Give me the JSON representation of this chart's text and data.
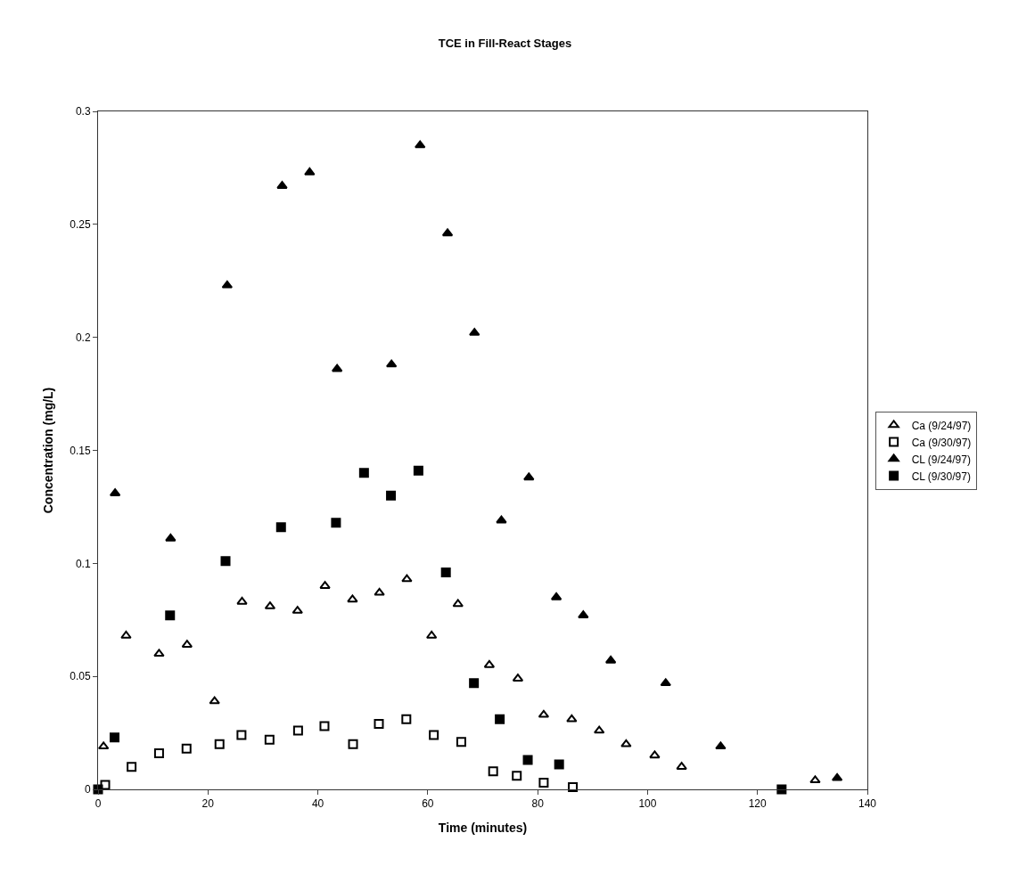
{
  "chart_data": {
    "type": "scatter",
    "title": "TCE in Fill-React Stages",
    "xlabel": "Time (minutes)",
    "ylabel": "Concentration (mg/L)",
    "xlim": [
      0,
      140
    ],
    "xticks": [
      0,
      20,
      40,
      60,
      80,
      100,
      120,
      140
    ],
    "ylim": [
      0,
      0.3
    ],
    "yticks": [
      0,
      0.05,
      0.1,
      0.15,
      0.2,
      0.25,
      0.3
    ],
    "legend": "right",
    "series": [
      {
        "name": "Ca (9/24/97)",
        "color": "#000000",
        "marker": "triangle-open",
        "x": [
          1.0,
          5.1,
          11.1,
          16.2,
          21.2,
          26.2,
          31.3,
          36.3,
          41.3,
          46.3,
          51.2,
          56.2,
          60.7,
          65.5,
          71.2,
          76.4,
          81.1,
          86.2,
          91.2,
          96.1,
          101.3,
          106.2,
          130.5
        ],
        "values": [
          0.019,
          0.068,
          0.06,
          0.064,
          0.039,
          0.083,
          0.081,
          0.079,
          0.09,
          0.084,
          0.087,
          0.093,
          0.068,
          0.082,
          0.055,
          0.049,
          0.033,
          0.031,
          0.026,
          0.02,
          0.015,
          0.01,
          0.004
        ]
      },
      {
        "name": "Ca (9/30/97)",
        "color": "#000000",
        "marker": "square-open",
        "x": [
          1.3,
          6.1,
          11.1,
          16.1,
          22.1,
          26.1,
          31.2,
          36.4,
          41.2,
          46.4,
          51.1,
          56.1,
          61.1,
          66.1,
          71.9,
          76.2,
          81.1,
          86.4
        ],
        "values": [
          0.002,
          0.01,
          0.016,
          0.018,
          0.02,
          0.024,
          0.022,
          0.026,
          0.028,
          0.02,
          0.029,
          0.031,
          0.024,
          0.021,
          0.008,
          0.006,
          0.003,
          0.001
        ]
      },
      {
        "name": "CL (9/24/97)",
        "color": "#000000",
        "marker": "triangle",
        "x": [
          3.1,
          13.2,
          23.5,
          33.5,
          38.5,
          43.5,
          53.4,
          58.6,
          63.6,
          68.5,
          73.4,
          78.4,
          83.4,
          88.3,
          93.3,
          103.3,
          113.3,
          134.5
        ],
        "values": [
          0.131,
          0.111,
          0.223,
          0.267,
          0.273,
          0.186,
          0.188,
          0.285,
          0.246,
          0.202,
          0.119,
          0.138,
          0.085,
          0.077,
          0.057,
          0.047,
          0.019,
          0.005
        ]
      },
      {
        "name": "CL (9/30/97)",
        "color": "#000000",
        "marker": "square",
        "x": [
          0,
          3.0,
          13.1,
          23.2,
          33.3,
          43.3,
          48.4,
          53.3,
          58.3,
          63.3,
          68.4,
          73.1,
          78.2,
          83.9,
          124.4
        ],
        "values": [
          0,
          0.023,
          0.077,
          0.101,
          0.116,
          0.118,
          0.14,
          0.13,
          0.141,
          0.096,
          0.047,
          0.031,
          0.013,
          0.011,
          0
        ]
      }
    ]
  }
}
